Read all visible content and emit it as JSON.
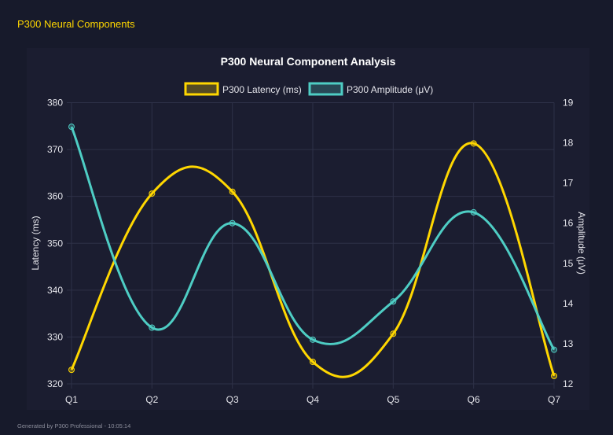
{
  "header": {
    "title": "P300 Neural Components"
  },
  "footer": {
    "text": "Generated by P300 Professional - 10:05:14"
  },
  "chart_data": {
    "type": "line",
    "title": "P300 Neural Component Analysis",
    "categories": [
      "Q1",
      "Q2",
      "Q3",
      "Q4",
      "Q5",
      "Q6",
      "Q7"
    ],
    "series": [
      {
        "name": "P300 Latency (ms)",
        "axis": "left",
        "color": "#ffd700",
        "values": [
          323.0,
          360.6,
          361.0,
          324.7,
          330.7,
          371.3,
          321.7
        ]
      },
      {
        "name": "P300 Amplitude (μV)",
        "axis": "right",
        "color": "#4ecdc4",
        "values": [
          18.4,
          13.4,
          16.0,
          13.1,
          14.05,
          16.27,
          12.85
        ]
      }
    ],
    "ylabel": "Latency (ms)",
    "y2label": "Amplitude (μV)",
    "ylim": [
      320,
      380
    ],
    "y2lim": [
      12,
      19
    ],
    "yticks": [
      "320",
      "330",
      "340",
      "350",
      "360",
      "370",
      "380"
    ],
    "y2ticks": [
      "12",
      "13",
      "14",
      "15",
      "16",
      "17",
      "18",
      "19"
    ],
    "grid": true,
    "legend": "top",
    "smooth": true
  }
}
